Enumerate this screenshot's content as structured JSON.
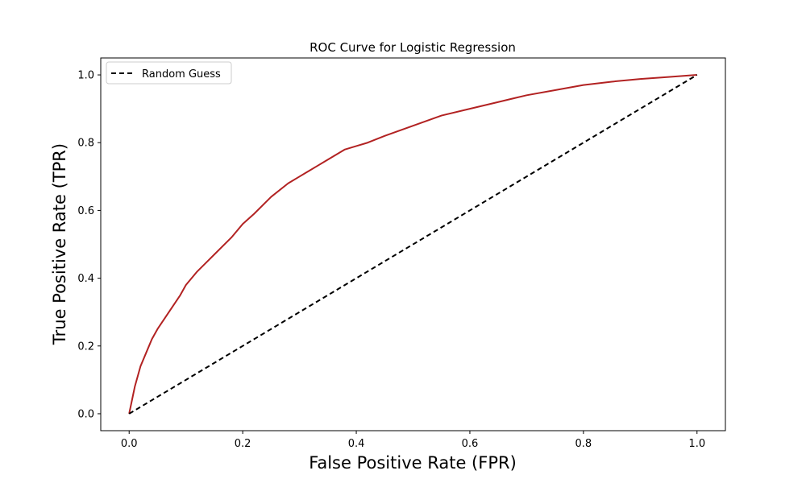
{
  "chart_data": {
    "type": "line",
    "title": "ROC Curve for Logistic Regression",
    "xlabel": "False Positive Rate (FPR)",
    "ylabel": "True Positive Rate (TPR)",
    "xlim": [
      -0.05,
      1.05
    ],
    "ylim": [
      -0.05,
      1.05
    ],
    "xticks": [
      0.0,
      0.2,
      0.4,
      0.6,
      0.8,
      1.0
    ],
    "yticks": [
      0.0,
      0.2,
      0.4,
      0.6,
      0.8,
      1.0
    ],
    "xtick_labels": [
      "0.0",
      "0.2",
      "0.4",
      "0.6",
      "0.8",
      "1.0"
    ],
    "ytick_labels": [
      "0.0",
      "0.2",
      "0.4",
      "0.6",
      "0.8",
      "1.0"
    ],
    "grid": false,
    "legend": {
      "placement": "upper-left",
      "entries": [
        "Random Guess"
      ]
    },
    "series": [
      {
        "color": "#b22222",
        "style": "solid",
        "x": [
          0.0,
          0.005,
          0.01,
          0.015,
          0.02,
          0.03,
          0.04,
          0.05,
          0.07,
          0.09,
          0.1,
          0.12,
          0.15,
          0.18,
          0.2,
          0.22,
          0.25,
          0.28,
          0.3,
          0.33,
          0.35,
          0.38,
          0.4,
          0.42,
          0.45,
          0.5,
          0.55,
          0.6,
          0.65,
          0.7,
          0.75,
          0.8,
          0.85,
          0.9,
          0.95,
          1.0
        ],
        "y": [
          0.0,
          0.04,
          0.08,
          0.11,
          0.14,
          0.18,
          0.22,
          0.25,
          0.3,
          0.35,
          0.38,
          0.42,
          0.47,
          0.52,
          0.56,
          0.59,
          0.64,
          0.68,
          0.7,
          0.73,
          0.75,
          0.78,
          0.79,
          0.8,
          0.82,
          0.85,
          0.88,
          0.9,
          0.92,
          0.94,
          0.955,
          0.97,
          0.98,
          0.988,
          0.994,
          1.0
        ]
      },
      {
        "name": "Random Guess",
        "color": "#000000",
        "style": "dashed",
        "x": [
          0.0,
          1.0
        ],
        "y": [
          0.0,
          1.0
        ]
      }
    ]
  }
}
